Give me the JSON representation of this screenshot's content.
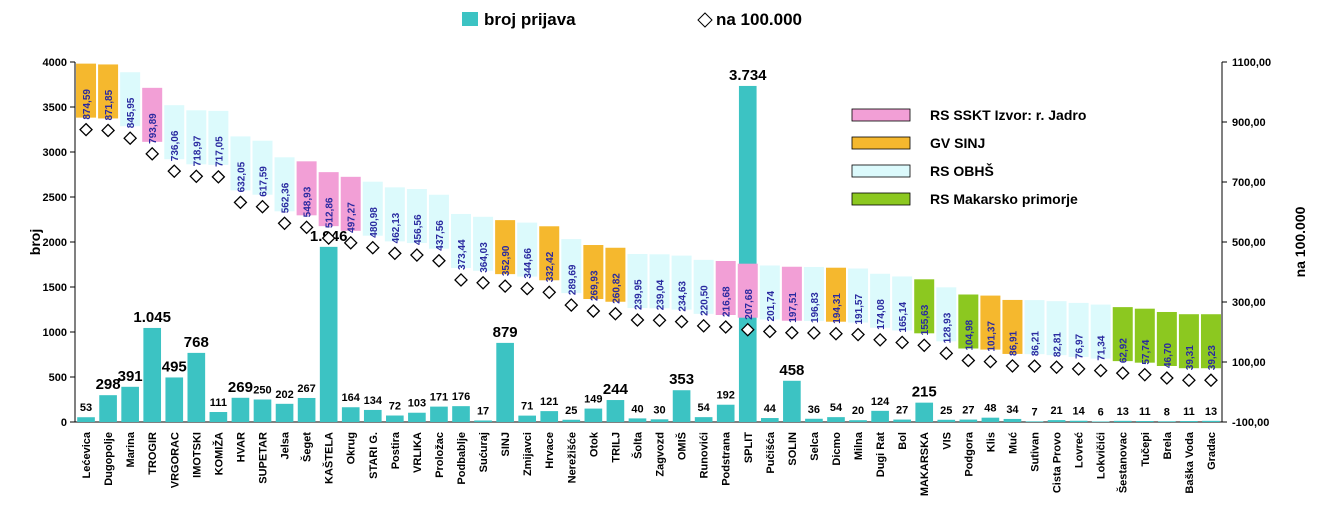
{
  "chart_data": {
    "type": "bar_marker",
    "categories": [
      "Lećevica",
      "Dugopolje",
      "Marina",
      "TROGIR",
      "VRGORAC",
      "IMOTSKI",
      "KOMIŽA",
      "HVAR",
      "SUPETAR",
      "Jelsa",
      "Šeget",
      "KAŠTELA",
      "Okrug",
      "STARI G.",
      "Postira",
      "VRLIKA",
      "Proložac",
      "Podbablje",
      "Sućuraj",
      "SINJ",
      "Zmijavci",
      "Hrvace",
      "Nerežišće",
      "Otok",
      "TRILJ",
      "Šolta",
      "Zagvozd",
      "OMIŠ",
      "Runovići",
      "Podstrana",
      "SPLIT",
      "Pučišća",
      "SOLIN",
      "Selca",
      "Dicmo",
      "Milna",
      "Dugi Rat",
      "Bol",
      "MAKARSKA",
      "VIS",
      "Podgora",
      "Klis",
      "Muć",
      "Sutivan",
      "Cista Provo",
      "Lovreć",
      "Lokvičići",
      "Šestanovac",
      "Tučepi",
      "Brela",
      "Baška Voda",
      "Gradac"
    ],
    "series": [
      {
        "name": "broj prijava",
        "color": "#3cc3c3",
        "values": [
          53,
          298,
          391,
          1045,
          495,
          768,
          111,
          269,
          250,
          202,
          267,
          1946,
          164,
          134,
          72,
          103,
          171,
          176,
          17,
          879,
          71,
          121,
          25,
          149,
          244,
          40,
          30,
          353,
          54,
          192,
          3734,
          44,
          458,
          36,
          54,
          20,
          124,
          27,
          215,
          25,
          27,
          48,
          34,
          7,
          21,
          14,
          6,
          13,
          11,
          8,
          11,
          13
        ],
        "value_labels": [
          "53",
          "298",
          "391",
          "1.045",
          "495",
          "768",
          "111",
          "269",
          "250",
          "202",
          "267",
          "1.946",
          "164",
          "134",
          "72",
          "103",
          "171",
          "176",
          "17",
          "879",
          "71",
          "121",
          "25",
          "149",
          "244",
          "40",
          "30",
          "353",
          "54",
          "192",
          "3.734",
          "44",
          "458",
          "36",
          "54",
          "20",
          "124",
          "27",
          "215",
          "25",
          "27",
          "48",
          "34",
          "7",
          "21",
          "14",
          "6",
          "13",
          "11",
          "8",
          "11",
          "13"
        ]
      },
      {
        "name": "na 100.000",
        "color": "#000000",
        "axis": "y2",
        "values": [
          874.59,
          871.85,
          845.95,
          793.89,
          736.06,
          718.97,
          717.05,
          632.05,
          617.59,
          562.36,
          548.93,
          512.86,
          497.27,
          480.98,
          462.13,
          456.56,
          437.56,
          373.44,
          364.03,
          352.9,
          344.66,
          332.42,
          289.69,
          269.93,
          260.82,
          239.95,
          239.04,
          234.63,
          220.5,
          216.68,
          207.68,
          201.74,
          197.51,
          196.83,
          194.31,
          191.57,
          174.08,
          165.14,
          155.63,
          128.93,
          104.98,
          101.37,
          86.91,
          86.21,
          82.81,
          76.97,
          71.34,
          62.92,
          57.74,
          46.7,
          39.31,
          39.23
        ],
        "value_labels": [
          "874,59",
          "871,85",
          "845,95",
          "793,89",
          "736,06",
          "718,97",
          "717,05",
          "632,05",
          "617,59",
          "562,36",
          "548,93",
          "512,86",
          "497,27",
          "480,98",
          "462,13",
          "456,56",
          "437,56",
          "373,44",
          "364,03",
          "352,90",
          "344,66",
          "332,42",
          "289,69",
          "269,93",
          "260,82",
          "239,95",
          "239,04",
          "234,63",
          "220,50",
          "216,68",
          "207,68",
          "201,74",
          "197,51",
          "196,83",
          "194,31",
          "191,57",
          "174,08",
          "165,14",
          "155,63",
          "128,93",
          "104,98",
          "101,37",
          "86,91",
          "86,21",
          "82,81",
          "76,97",
          "71,34",
          "62,92",
          "57,74",
          "46,70",
          "39,31",
          "39,23"
        ]
      }
    ],
    "groups": [
      {
        "name": "RS SSKT  Izvor: r. Jadro",
        "color": "#f29fd6"
      },
      {
        "name": "GV SINJ",
        "color": "#f5b82e"
      },
      {
        "name": "RS OBHŠ",
        "color": "#dcfafc"
      },
      {
        "name": "RS Makarsko primorje",
        "color": "#8cc820"
      }
    ],
    "category_groups": [
      "GV SINJ",
      "GV SINJ",
      "RS OBHŠ",
      "RS SSKT  Izvor: r. Jadro",
      "RS OBHŠ",
      "RS OBHŠ",
      "RS OBHŠ",
      "RS OBHŠ",
      "RS OBHŠ",
      "RS OBHŠ",
      "RS SSKT  Izvor: r. Jadro",
      "RS SSKT  Izvor: r. Jadro",
      "RS SSKT  Izvor: r. Jadro",
      "RS OBHŠ",
      "RS OBHŠ",
      "RS OBHŠ",
      "RS OBHŠ",
      "RS OBHŠ",
      "RS OBHŠ",
      "GV SINJ",
      "RS OBHŠ",
      "GV SINJ",
      "RS OBHŠ",
      "GV SINJ",
      "GV SINJ",
      "RS OBHŠ",
      "RS OBHŠ",
      "RS OBHŠ",
      "RS OBHŠ",
      "RS SSKT  Izvor: r. Jadro",
      "RS SSKT  Izvor: r. Jadro",
      "RS OBHŠ",
      "RS SSKT  Izvor: r. Jadro",
      "RS OBHŠ",
      "GV SINJ",
      "RS OBHŠ",
      "RS OBHŠ",
      "RS OBHŠ",
      "RS Makarsko primorje",
      "RS OBHŠ",
      "RS Makarsko primorje",
      "GV SINJ",
      "GV SINJ",
      "RS OBHŠ",
      "RS OBHŠ",
      "RS OBHŠ",
      "RS OBHŠ",
      "RS Makarsko primorje",
      "RS Makarsko primorje",
      "RS Makarsko primorje",
      "RS Makarsko primorje",
      "RS Makarsko primorje"
    ],
    "ylabel": "broj",
    "y2label": "na 100.000",
    "ylim": [
      0,
      4000
    ],
    "yticks": [
      0,
      500,
      1000,
      1500,
      2000,
      2500,
      3000,
      3500,
      4000
    ],
    "y2lim": [
      -100,
      1100
    ],
    "y2ticks": [
      {
        "value": -100,
        "label": "-100,00"
      },
      {
        "value": 100,
        "label": "100,00"
      },
      {
        "value": 300,
        "label": "300,00"
      },
      {
        "value": 500,
        "label": "500,00"
      },
      {
        "value": 700,
        "label": "700,00"
      },
      {
        "value": 900,
        "label": "900,00"
      },
      {
        "value": 1100,
        "label": "1100,00"
      }
    ]
  }
}
